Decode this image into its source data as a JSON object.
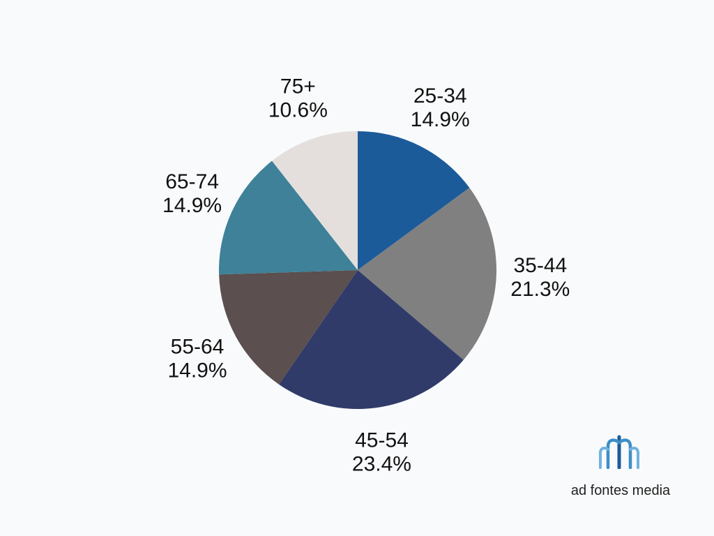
{
  "chart_data": {
    "type": "pie",
    "title": "",
    "start_angle_deg": 0,
    "direction": "clockwise",
    "slices": [
      {
        "label": "25-34",
        "value": 14.9,
        "display": "14.9%",
        "color": "#1c5b99"
      },
      {
        "label": "35-44",
        "value": 21.3,
        "display": "21.3%",
        "color": "#808080"
      },
      {
        "label": "45-54",
        "value": 23.4,
        "display": "23.4%",
        "color": "#303b69"
      },
      {
        "label": "55-64",
        "value": 14.9,
        "display": "14.9%",
        "color": "#5b4f4f"
      },
      {
        "label": "65-74",
        "value": 14.9,
        "display": "14.9%",
        "color": "#3e8199"
      },
      {
        "label": "75+",
        "value": 10.6,
        "display": "10.6%",
        "color": "#e4dfdd"
      }
    ]
  },
  "logo": {
    "text": "ad fontes media",
    "colors": [
      "#1c5b99",
      "#3e8ec6",
      "#6fb2de"
    ]
  }
}
